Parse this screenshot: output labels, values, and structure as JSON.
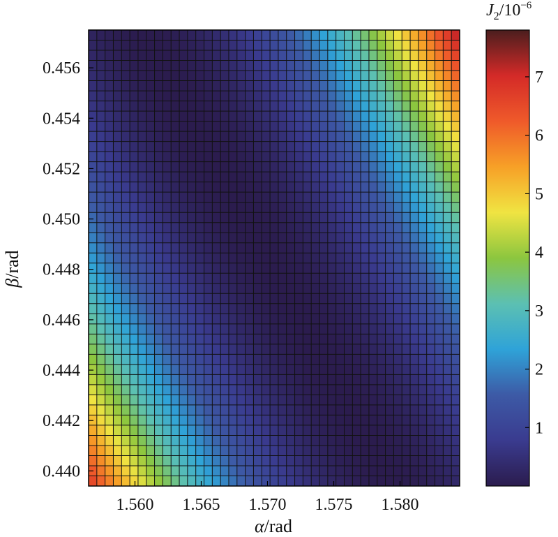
{
  "chart_data": {
    "type": "heatmap",
    "grid": true,
    "x": {
      "label_symbol": "α",
      "label_unit": "/rad",
      "range": [
        1.5565,
        1.5845
      ],
      "ticks": [
        1.56,
        1.565,
        1.57,
        1.575,
        1.58
      ],
      "tick_labels": [
        "1.560",
        "1.565",
        "1.570",
        "1.575",
        "1.580"
      ]
    },
    "y": {
      "label_symbol": "β",
      "label_unit": "/rad",
      "range": [
        0.4394,
        0.4575
      ],
      "ticks": [
        0.44,
        0.442,
        0.444,
        0.446,
        0.448,
        0.45,
        0.452,
        0.454,
        0.456
      ],
      "tick_labels": [
        "0.440",
        "0.442",
        "0.444",
        "0.446",
        "0.448",
        "0.450",
        "0.452",
        "0.454",
        "0.456"
      ]
    },
    "grid_size": {
      "cols": 45,
      "rows": 45
    },
    "z_trough": {
      "description": "Minimum (≈0) of J2 runs along a diagonal valley",
      "points": [
        [
          1.5605,
          0.4575
        ],
        [
          1.5795,
          0.4394
        ]
      ]
    },
    "z_corner_values": {
      "bottom_left": 6.8,
      "top_right": 6.8,
      "top_left": 1.0,
      "bottom_right": 1.0
    },
    "colorbar": {
      "title_main": "J",
      "title_sub": "2",
      "title_rest": "/10",
      "title_sup": "−6",
      "range": [
        0,
        7.8
      ],
      "ticks": [
        1,
        2,
        3,
        4,
        5,
        6,
        7
      ],
      "tick_labels": [
        "1",
        "2",
        "3",
        "4",
        "5",
        "6",
        "7"
      ],
      "colormap": [
        "#2b1c4e",
        "#3a3b8f",
        "#3d5aa6",
        "#2fa3d8",
        "#5cc0b2",
        "#8cc63f",
        "#f0e442",
        "#f7a027",
        "#ef5a2a",
        "#d42a28",
        "#4b1e1e"
      ]
    }
  }
}
